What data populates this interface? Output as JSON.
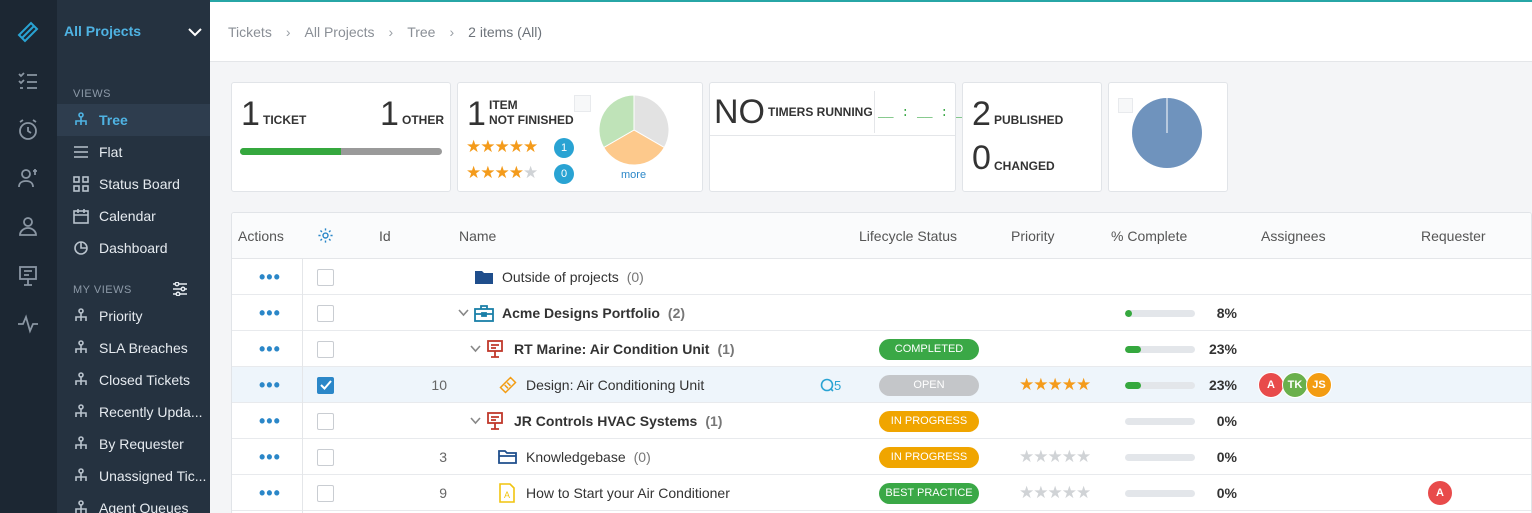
{
  "sidebar": {
    "project_selector": "All Projects",
    "views_title": "VIEWS",
    "views": [
      {
        "label": "Tree",
        "icon": "tree-icon",
        "active": true
      },
      {
        "label": "Flat",
        "icon": "list-icon"
      },
      {
        "label": "Status Board",
        "icon": "grid-icon"
      },
      {
        "label": "Calendar",
        "icon": "calendar-icon"
      },
      {
        "label": "Dashboard",
        "icon": "pie-icon"
      }
    ],
    "my_views_title": "MY VIEWS",
    "my_views": [
      {
        "label": "Priority"
      },
      {
        "label": "SLA Breaches"
      },
      {
        "label": "Closed Tickets"
      },
      {
        "label": "Recently Upda..."
      },
      {
        "label": "By Requester"
      },
      {
        "label": "Unassigned Tic..."
      },
      {
        "label": "Agent Queues"
      }
    ]
  },
  "breadcrumb": {
    "items": [
      "Tickets",
      "All Projects",
      "Tree",
      "2 items (All)"
    ]
  },
  "cards": {
    "tickets": {
      "count": "1",
      "label": "TICKET",
      "other_count": "1",
      "other_label": "OTHER",
      "progress": 0.5
    },
    "items": {
      "count": "1",
      "label_line1": "ITEM",
      "label_line2": "NOT FINISHED",
      "five_star_count": "1",
      "four_star_count": "0",
      "more": "more",
      "pie": [
        {
          "value": 1,
          "color": "#e2e2e2"
        },
        {
          "value": 1,
          "color": "#fdc98c"
        },
        {
          "value": 1,
          "color": "#bfe3b8"
        }
      ]
    },
    "timers": {
      "value": "NO",
      "label": "TIMERS RUNNING",
      "clock": "__ : __ : __"
    },
    "publish": {
      "published_count": "2",
      "published_label": "PUBLISHED",
      "changed_count": "0",
      "changed_label": "CHANGED"
    },
    "pie2": {
      "color": "#6f93bd"
    }
  },
  "table": {
    "headers": {
      "actions": "Actions",
      "id": "Id",
      "name": "Name",
      "lifecycle": "Lifecycle Status",
      "priority": "Priority",
      "complete": "% Complete",
      "assignees": "Assignees",
      "requester": "Requester"
    },
    "rows": [
      {
        "id": "",
        "name": "Outside of projects",
        "count": "(0)",
        "level": 0,
        "icon": "folder-icon",
        "bold": false,
        "status": "",
        "stars": null,
        "pct": null,
        "pct_label": "",
        "checked": false
      },
      {
        "id": "",
        "name": "Acme Designs  Portfolio",
        "count": "(2)",
        "level": 0,
        "icon": "portfolio-icon",
        "bold": true,
        "status": "",
        "stars": null,
        "pct": 0.08,
        "pct_label": "8%",
        "checked": false,
        "chevron": true
      },
      {
        "id": "",
        "name": "RT Marine: Air Condition Unit",
        "count": "(1)",
        "level": 1,
        "icon": "project-icon",
        "bold": true,
        "status": "COMPLETED",
        "status_color": "#3aa846",
        "stars": null,
        "pct": 0.23,
        "pct_label": "23%",
        "checked": false,
        "chevron": true
      },
      {
        "id": "10",
        "name": "Design: Air Conditioning Unit",
        "count": "",
        "level": 2,
        "icon": "ticket-icon",
        "bold": false,
        "status": "OPEN",
        "status_color": "#c4c6c9",
        "stars": 5,
        "pct": 0.23,
        "pct_label": "23%",
        "checked": true,
        "comments": "5",
        "assignees": [
          {
            "initials": "A",
            "color": "#e84b4b"
          },
          {
            "initials": "TK",
            "color": "#6ab04c"
          },
          {
            "initials": "JS",
            "color": "#f39c12"
          }
        ]
      },
      {
        "id": "",
        "name": "JR Controls HVAC Systems",
        "count": "(1)",
        "level": 1,
        "icon": "project-icon",
        "bold": true,
        "status": "IN PROGRESS",
        "status_color": "#f0a500",
        "stars": null,
        "pct": 0,
        "pct_label": "0%",
        "checked": false,
        "chevron": true
      },
      {
        "id": "3",
        "name": "Knowledgebase",
        "count": "(0)",
        "level": 2,
        "icon": "folder-open-icon",
        "bold": false,
        "status": "IN PROGRESS",
        "status_color": "#f0a500",
        "stars": 0,
        "pct": 0,
        "pct_label": "0%",
        "checked": false
      },
      {
        "id": "9",
        "name": "How to Start your Air Conditioner",
        "count": "",
        "level": 2,
        "icon": "article-icon",
        "bold": false,
        "status": "BEST PRACTICE",
        "status_color": "#3aa846",
        "stars": 0,
        "pct": 0,
        "pct_label": "0%",
        "checked": false,
        "requester": {
          "initials": "A",
          "color": "#e84b4b"
        }
      }
    ]
  },
  "colors": {
    "accent": "#29a3d3",
    "sidebar_bg": "#253240",
    "rail_bg": "#1c2733"
  }
}
